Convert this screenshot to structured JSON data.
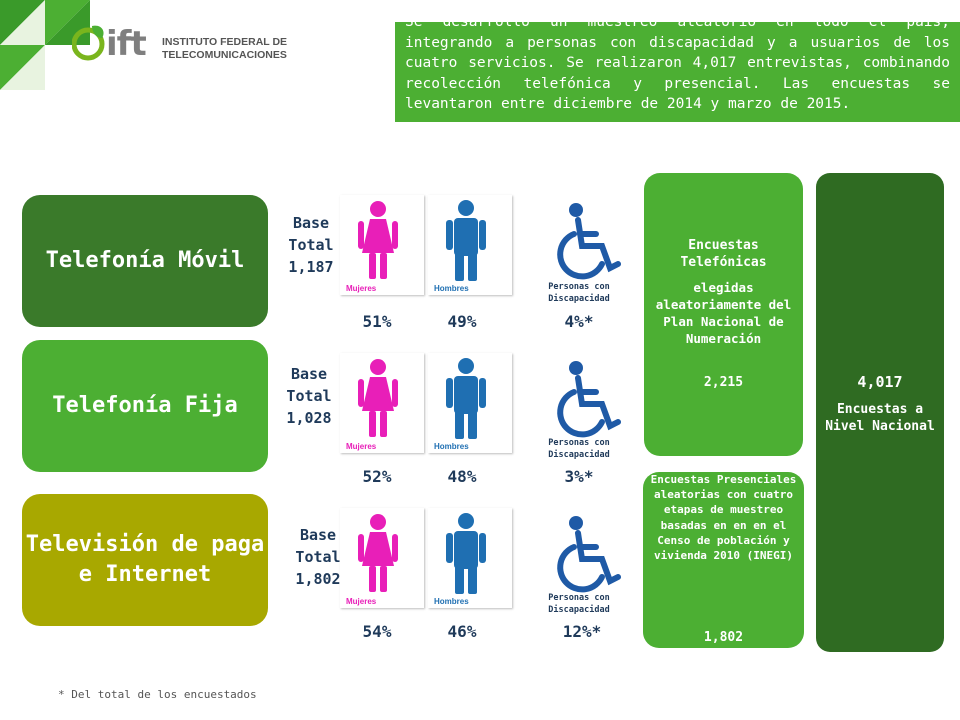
{
  "header": {
    "logo_word": "ift",
    "logo_name_line1": "INSTITUTO FEDERAL DE",
    "logo_name_line2": "TELECOMUNICACIONES",
    "intro_text": "Se desarrolló un muestreo aleatorio en todo el país, integrando a personas con discapacidad y a usuarios de los cuatro servicios. Se realizaron 4,017 entrevistas, combinando recolección telefónica y presencial. Las encuestas se levantaron entre diciembre de 2014 y marzo de 2015."
  },
  "rows": [
    {
      "service": "Telefonía Móvil",
      "base_label_1": "Base",
      "base_label_2": "Total",
      "base_value": "1,187",
      "women_pct": "51%",
      "men_pct": "49%",
      "disability_pct": "4%*"
    },
    {
      "service": "Telefonía Fija",
      "base_label_1": "Base",
      "base_label_2": "Total",
      "base_value": "1,028",
      "women_pct": "52%",
      "men_pct": "48%",
      "disability_pct": "3%*"
    },
    {
      "service": "Televisión de paga e Internet",
      "base_label_1": "Base",
      "base_label_2": "Total",
      "base_value": "1,802",
      "women_pct": "54%",
      "men_pct": "46%",
      "disability_pct": "12%*"
    }
  ],
  "icons": {
    "women_label": "Mujeres",
    "men_label": "Hombres",
    "disability_label_1": "Personas con",
    "disability_label_2": "Discapacidad",
    "women_color": "#e81fb8",
    "men_color": "#1f6fb2",
    "disability_color": "#1f5aa6"
  },
  "surveys": {
    "phone_title": "Encuestas Telefónicas",
    "phone_desc": "elegidas aleatoriamente del Plan Nacional de Numeración",
    "phone_count": "2,215",
    "presencial_desc": "Encuestas Presenciales aleatorias con cuatro etapas de muestreo basadas en en en el Censo de población y vivienda 2010 (INEGI)",
    "presencial_count": "1,802",
    "national_count": "4,017",
    "national_desc": "Encuestas a Nivel Nacional"
  },
  "footnote": "* Del total de los encuestados",
  "colors": {
    "dark_green": "#3a7a2a",
    "green": "#4caf33",
    "olive": "#a8a800",
    "darkest_green": "#2f6b22",
    "navy_text": "#1f3a5a"
  }
}
